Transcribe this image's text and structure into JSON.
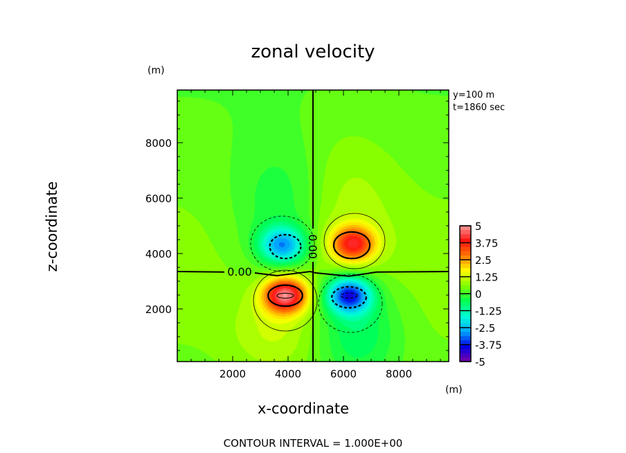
{
  "chart_data": {
    "type": "heatmap",
    "subtype": "filled-contour",
    "title": "zonal velocity",
    "xlabel": "x-coordinate",
    "ylabel": "z-coordinate",
    "x_unit": "(m)",
    "y_unit": "(m)",
    "xlim": [
      0,
      9800
    ],
    "ylim": [
      100,
      9900
    ],
    "xticks": [
      "2000",
      "4000",
      "6000",
      "8000"
    ],
    "xtick_values": [
      2000,
      4000,
      6000,
      8000
    ],
    "yticks": [
      "2000",
      "4000",
      "6000",
      "8000"
    ],
    "ytick_values": [
      2000,
      4000,
      6000,
      8000
    ],
    "annotations": [
      "y=100 m",
      "t=1860 sec"
    ],
    "contour_labels": [
      "0.00",
      "0.00"
    ],
    "footer": "CONTOUR INTERVAL = 1.000E+00",
    "colorbar": {
      "labels": [
        "5",
        "3.75",
        "2.5",
        "1.25",
        "0",
        "-1.25",
        "-2.5",
        "-3.75",
        "-5"
      ],
      "values": [
        5,
        3.75,
        2.5,
        1.25,
        0,
        -1.25,
        -2.5,
        -3.75,
        -5
      ],
      "range": [
        -5,
        5
      ]
    },
    "background_value": 0.6,
    "features": [
      {
        "name": "positive-upper-right",
        "x": 6350,
        "z": 4350,
        "amplitude": 3.2
      },
      {
        "name": "negative-upper-left",
        "x": 3800,
        "z": 4300,
        "amplitude": -3.0
      },
      {
        "name": "positive-lower-left",
        "x": 3900,
        "z": 2500,
        "amplitude": 4.2
      },
      {
        "name": "negative-lower-right",
        "x": 6200,
        "z": 2500,
        "amplitude": -4.0
      }
    ],
    "colors": {
      "stops": [
        "#7a00a8",
        "#0000e6",
        "#00a8ff",
        "#00ffd8",
        "#00ff50",
        "#80ff00",
        "#ffff00",
        "#ff7800",
        "#ff1010",
        "#ff9a9a"
      ]
    }
  }
}
